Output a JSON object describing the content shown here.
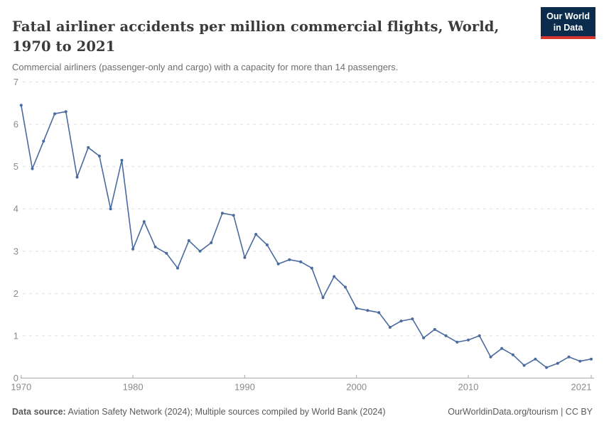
{
  "header": {
    "title": "Fatal airliner accidents per million commercial flights, World, 1970 to 2021",
    "subtitle": "Commercial airliners (passenger-only and cargo) with a capacity for more than 14 passengers."
  },
  "logo": {
    "line1": "Our World",
    "line2": "in Data",
    "bg_color": "#0c2c4e",
    "bar_color": "#d8352e"
  },
  "footer": {
    "source_label": "Data source:",
    "source_text": " Aviation Safety Network (2024); Multiple sources compiled by World Bank (2024)",
    "credit": "OurWorldinData.org/tourism | CC BY"
  },
  "chart_data": {
    "type": "line",
    "title": "Fatal airliner accidents per million commercial flights, World, 1970 to 2021",
    "xlabel": "",
    "ylabel": "",
    "ylim": [
      0,
      7
    ],
    "yticks": [
      0,
      1,
      2,
      3,
      4,
      5,
      6,
      7
    ],
    "xticks": [
      1970,
      1980,
      1990,
      2000,
      2010,
      2021
    ],
    "grid": "horizontal-dashed",
    "legend": "none",
    "colors": {
      "line": "#4a6b9f",
      "grid": "#e0e0e0",
      "axis": "#a8a8a8",
      "tick_label": "#8a8a8a"
    },
    "x": [
      1970,
      1971,
      1972,
      1973,
      1974,
      1975,
      1976,
      1977,
      1978,
      1979,
      1980,
      1981,
      1982,
      1983,
      1984,
      1985,
      1986,
      1987,
      1988,
      1989,
      1990,
      1991,
      1992,
      1993,
      1994,
      1995,
      1996,
      1997,
      1998,
      1999,
      2000,
      2001,
      2002,
      2003,
      2004,
      2005,
      2006,
      2007,
      2008,
      2009,
      2010,
      2011,
      2012,
      2013,
      2014,
      2015,
      2016,
      2017,
      2018,
      2019,
      2020,
      2021
    ],
    "series": [
      {
        "name": "World",
        "values": [
          6.45,
          4.95,
          5.6,
          6.25,
          6.3,
          4.75,
          5.45,
          5.25,
          4.0,
          5.15,
          3.05,
          3.7,
          3.1,
          2.95,
          2.6,
          3.25,
          3.0,
          3.2,
          3.9,
          3.85,
          2.85,
          3.4,
          3.15,
          2.7,
          2.8,
          2.75,
          2.6,
          1.9,
          2.4,
          2.15,
          1.65,
          1.6,
          1.55,
          1.2,
          1.35,
          1.4,
          0.95,
          1.15,
          1.0,
          0.85,
          0.9,
          1.0,
          0.5,
          0.7,
          0.55,
          0.3,
          0.45,
          0.25,
          0.35,
          0.5,
          0.4,
          0.45
        ]
      }
    ]
  }
}
